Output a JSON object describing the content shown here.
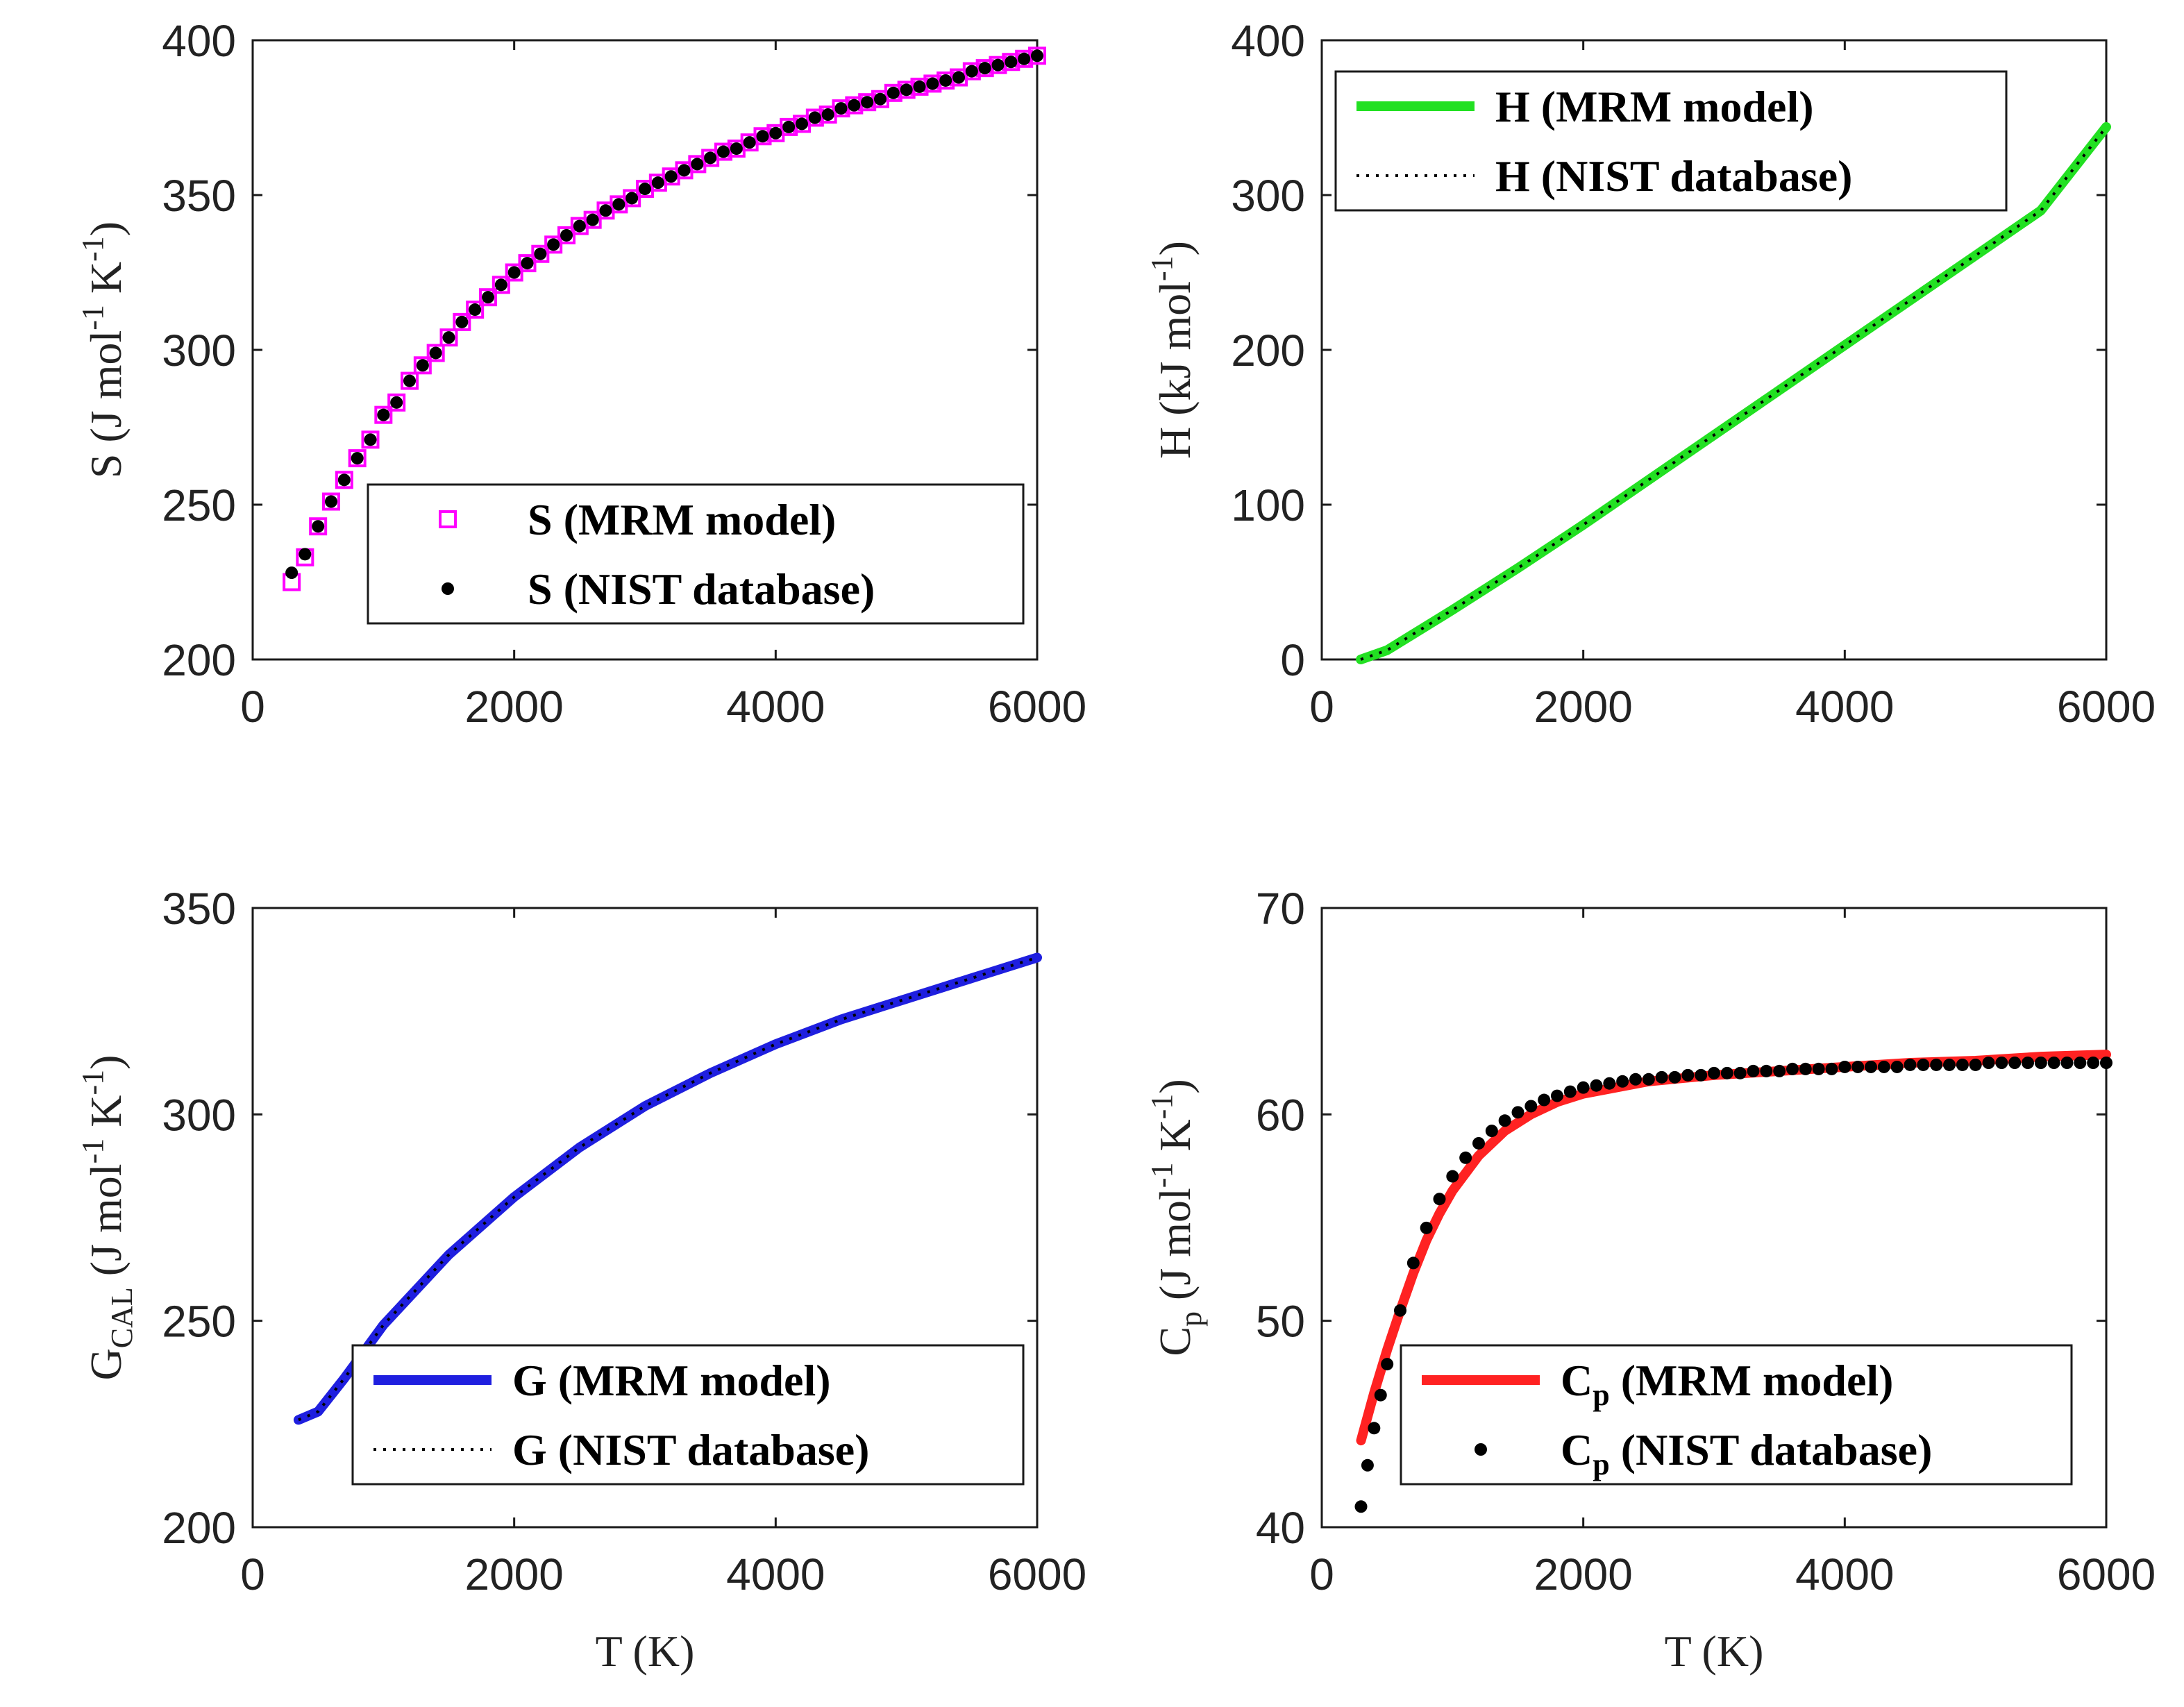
{
  "colors": {
    "s_mrm": "#ff00ff",
    "h_mrm": "#22e022",
    "g_mrm": "#1f1fdf",
    "cp_mrm": "#ff2222",
    "nist": "#000000"
  },
  "chart_data": [
    {
      "id": "s",
      "type": "scatter",
      "title": "",
      "xlabel": "",
      "ylabel": {
        "main": "S (J mol",
        "sup1": "-1",
        "mid": " K",
        "sup2": "-1",
        "end": ")"
      },
      "xlim": [
        0,
        6000
      ],
      "ylim": [
        200,
        400
      ],
      "xticks": [
        "0",
        "2000",
        "4000",
        "6000"
      ],
      "yticks": [
        "200",
        "250",
        "300",
        "350",
        "400"
      ],
      "legend_position": "lower-right",
      "series": [
        {
          "name": "S (MRM model)",
          "legend": {
            "sym": "S",
            "rest": "(MRM model)"
          },
          "style": "square",
          "color_key": "s_mrm",
          "x": [
            298,
            400,
            500,
            600,
            700,
            800,
            900,
            1000,
            1100,
            1200,
            1300,
            1400,
            1500,
            1600,
            1700,
            1800,
            1900,
            2000,
            2100,
            2200,
            2300,
            2400,
            2500,
            2600,
            2700,
            2800,
            2900,
            3000,
            3100,
            3200,
            3300,
            3400,
            3500,
            3600,
            3700,
            3800,
            3900,
            4000,
            4100,
            4200,
            4300,
            4400,
            4500,
            4600,
            4700,
            4800,
            4900,
            5000,
            5100,
            5200,
            5300,
            5400,
            5500,
            5600,
            5700,
            5800,
            5900,
            6000
          ],
          "y": [
            225,
            233,
            243,
            251,
            258,
            265,
            271,
            279,
            283,
            290,
            295,
            299,
            304,
            309,
            313,
            317,
            321,
            325,
            328,
            331,
            334,
            337,
            340,
            342,
            345,
            347,
            349,
            352,
            354,
            356,
            358,
            360,
            362,
            364,
            365,
            367,
            369,
            370,
            372,
            373,
            375,
            376,
            378,
            379,
            380,
            381,
            383,
            384,
            385,
            386,
            387,
            388,
            390,
            391,
            392,
            393,
            394,
            395
          ]
        },
        {
          "name": "S (NIST database)",
          "legend": {
            "sym": "S",
            "rest": "(NIST database)"
          },
          "style": "dot",
          "color_key": "nist",
          "x": [
            298,
            400,
            500,
            600,
            700,
            800,
            900,
            1000,
            1100,
            1200,
            1300,
            1400,
            1500,
            1600,
            1700,
            1800,
            1900,
            2000,
            2100,
            2200,
            2300,
            2400,
            2500,
            2600,
            2700,
            2800,
            2900,
            3000,
            3100,
            3200,
            3300,
            3400,
            3500,
            3600,
            3700,
            3800,
            3900,
            4000,
            4100,
            4200,
            4300,
            4400,
            4500,
            4600,
            4700,
            4800,
            4900,
            5000,
            5100,
            5200,
            5300,
            5400,
            5500,
            5600,
            5700,
            5800,
            5900,
            6000
          ],
          "y": [
            228,
            234,
            243,
            251,
            258,
            265,
            271,
            279,
            283,
            290,
            295,
            299,
            304,
            309,
            313,
            317,
            321,
            325,
            328,
            331,
            334,
            337,
            340,
            342,
            345,
            347,
            349,
            352,
            354,
            356,
            358,
            360,
            362,
            364,
            365,
            367,
            369,
            370,
            372,
            373,
            375,
            376,
            378,
            379,
            380,
            381,
            383,
            384,
            385,
            386,
            387,
            388,
            390,
            391,
            392,
            393,
            394,
            395
          ]
        }
      ]
    },
    {
      "id": "h",
      "type": "line",
      "title": "",
      "xlabel": "",
      "ylabel": {
        "main": "H (kJ mol",
        "sup1": "-1",
        "mid": "",
        "sup2": "",
        "end": ")"
      },
      "xlim": [
        0,
        6000
      ],
      "ylim": [
        0,
        400
      ],
      "xticks": [
        "0",
        "2000",
        "4000",
        "6000"
      ],
      "yticks": [
        "0",
        "100",
        "200",
        "300",
        "400"
      ],
      "legend_position": "upper-left",
      "series": [
        {
          "name": "H (MRM model)",
          "legend": {
            "sym": "H",
            "rest": "(MRM model)"
          },
          "style": "line",
          "color_key": "h_mrm",
          "x": [
            298,
            500,
            1000,
            1500,
            2000,
            2500,
            3000,
            3500,
            4000,
            4500,
            5000,
            5500,
            6000
          ],
          "y": [
            0,
            6,
            32,
            59,
            87,
            116,
            145,
            174,
            203,
            232,
            261,
            290,
            344
          ]
        },
        {
          "name": "H (NIST database)",
          "legend": {
            "sym": "H",
            "rest": "(NIST database)"
          },
          "style": "dotted",
          "color_key": "nist",
          "x": [
            298,
            500,
            1000,
            1500,
            2000,
            2500,
            3000,
            3500,
            4000,
            4500,
            5000,
            5500,
            6000
          ],
          "y": [
            0,
            6,
            32,
            59,
            87,
            116,
            145,
            174,
            203,
            232,
            261,
            290,
            344
          ]
        }
      ]
    },
    {
      "id": "g",
      "type": "line",
      "title": "",
      "xlabel": "T (K)",
      "ylabel": {
        "main": "G",
        "sub": "CAL",
        "after": " (J mol",
        "sup1": "-1",
        "mid": " K",
        "sup2": "-1",
        "end": ")"
      },
      "xlim": [
        0,
        6000
      ],
      "ylim": [
        200,
        350
      ],
      "xticks": [
        "0",
        "2000",
        "4000",
        "6000"
      ],
      "yticks": [
        "200",
        "250",
        "300",
        "350"
      ],
      "legend_position": "lower-right",
      "series": [
        {
          "name": "G (MRM model)",
          "legend": {
            "sym": "G",
            "rest": "(MRM model)"
          },
          "style": "line",
          "color_key": "g_mrm",
          "x": [
            350,
            500,
            700,
            1000,
            1500,
            2000,
            2500,
            3000,
            3500,
            4000,
            4500,
            5000,
            5500,
            6000
          ],
          "y": [
            226,
            228,
            236,
            249,
            266,
            280,
            292,
            302,
            310,
            317,
            323,
            328,
            333,
            338
          ]
        },
        {
          "name": "G (NIST database)",
          "legend": {
            "sym": "G",
            "rest": "(NIST database)"
          },
          "style": "dotted",
          "color_key": "nist",
          "x": [
            350,
            500,
            700,
            1000,
            1500,
            2000,
            2500,
            3000,
            3500,
            4000,
            4500,
            5000,
            5500,
            6000
          ],
          "y": [
            226,
            228,
            236,
            249,
            266,
            280,
            292,
            302,
            310,
            317,
            323,
            328,
            333,
            338
          ]
        }
      ]
    },
    {
      "id": "cp",
      "type": "line",
      "title": "",
      "xlabel": "T (K)",
      "ylabel": {
        "main": "C",
        "sub": "p",
        "after": " (J mol",
        "sup1": "-1",
        "mid": " K",
        "sup2": "-1",
        "end": ")"
      },
      "xlim": [
        0,
        6000
      ],
      "ylim": [
        40,
        70
      ],
      "xticks": [
        "0",
        "2000",
        "4000",
        "6000"
      ],
      "yticks": [
        "40",
        "50",
        "60",
        "70"
      ],
      "legend_position": "lower-right",
      "series": [
        {
          "name": "Cp (MRM model)",
          "legend": {
            "sym": "C",
            "sub": "p",
            "rest": "(MRM model)"
          },
          "style": "line",
          "color_key": "cp_mrm",
          "x": [
            300,
            400,
            500,
            600,
            700,
            800,
            900,
            1000,
            1200,
            1400,
            1600,
            1800,
            2000,
            2500,
            3000,
            3500,
            4000,
            4500,
            5000,
            5500,
            6000
          ],
          "y": [
            44.2,
            46.5,
            48.6,
            50.5,
            52.3,
            53.9,
            55.2,
            56.3,
            58.0,
            59.2,
            60.0,
            60.6,
            61.0,
            61.6,
            61.9,
            62.1,
            62.3,
            62.5,
            62.6,
            62.8,
            62.9
          ]
        },
        {
          "name": "Cp (NIST database)",
          "legend": {
            "sym": "C",
            "sub": "p",
            "rest": "(NIST database)"
          },
          "style": "dot",
          "color_key": "nist",
          "x": [
            300,
            350,
            400,
            450,
            500,
            600,
            700,
            800,
            900,
            1000,
            1100,
            1200,
            1300,
            1400,
            1500,
            1600,
            1700,
            1800,
            1900,
            2000,
            2100,
            2200,
            2300,
            2400,
            2500,
            2600,
            2700,
            2800,
            2900,
            3000,
            3100,
            3200,
            3300,
            3400,
            3500,
            3600,
            3700,
            3800,
            3900,
            4000,
            4100,
            4200,
            4300,
            4400,
            4500,
            4600,
            4700,
            4800,
            4900,
            5000,
            5100,
            5200,
            5300,
            5400,
            5500,
            5600,
            5700,
            5800,
            5900,
            6000
          ],
          "y": [
            41.0,
            43.0,
            44.8,
            46.4,
            47.9,
            50.5,
            52.8,
            54.5,
            55.9,
            57.0,
            57.9,
            58.6,
            59.2,
            59.7,
            60.1,
            60.4,
            60.7,
            60.9,
            61.1,
            61.3,
            61.4,
            61.5,
            61.6,
            61.7,
            61.7,
            61.8,
            61.8,
            61.9,
            61.9,
            62.0,
            62.0,
            62.0,
            62.1,
            62.1,
            62.1,
            62.2,
            62.2,
            62.2,
            62.2,
            62.3,
            62.3,
            62.3,
            62.3,
            62.3,
            62.4,
            62.4,
            62.4,
            62.4,
            62.4,
            62.4,
            62.5,
            62.5,
            62.5,
            62.5,
            62.5,
            62.5,
            62.5,
            62.5,
            62.5,
            62.5
          ]
        }
      ]
    }
  ]
}
